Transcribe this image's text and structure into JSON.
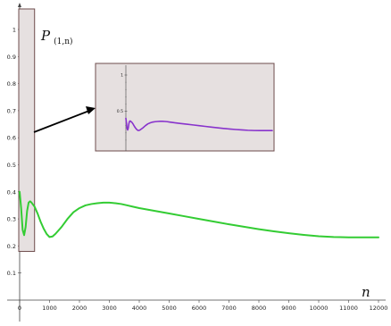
{
  "chart_data": {
    "type": "line",
    "xlabel": "n",
    "zoom_label_main": "P",
    "zoom_label_sub": "(1,n)",
    "xlim": [
      0,
      12000
    ],
    "ylim": [
      0,
      1
    ],
    "x_ticks": [
      0,
      1000,
      2000,
      3000,
      4000,
      5000,
      6000,
      7000,
      8000,
      9000,
      10000,
      11000,
      12000
    ],
    "x_tick_labels": [
      "0",
      "1000",
      "2000",
      "3000",
      "4000",
      "5000",
      "6000",
      "7000",
      "8000",
      "9000",
      "10000",
      "11000",
      "12000"
    ],
    "y_ticks": [
      0.1,
      0.2,
      0.3,
      0.4,
      0.5,
      0.6,
      0.7,
      0.8,
      0.9,
      1
    ],
    "y_tick_labels": [
      "0.1",
      "0.2",
      "0.3",
      "0.4",
      "0.5",
      "0.6",
      "0.7",
      "0.8",
      "0.9",
      "1"
    ],
    "grid": false,
    "series_color": "#33cc33",
    "x": [
      0,
      50,
      100,
      150,
      200,
      250,
      300,
      350,
      400,
      500,
      600,
      700,
      800,
      900,
      1000,
      1100,
      1200,
      1400,
      1600,
      1800,
      2000,
      2200,
      2400,
      2600,
      2800,
      3000,
      3200,
      3400,
      3600,
      3800,
      4000,
      4500,
      5000,
      5500,
      6000,
      6500,
      7000,
      7500,
      8000,
      8500,
      9000,
      9500,
      10000,
      10500,
      11000,
      11500,
      12000
    ],
    "y": [
      0.4,
      0.34,
      0.26,
      0.24,
      0.27,
      0.33,
      0.36,
      0.365,
      0.36,
      0.345,
      0.32,
      0.29,
      0.265,
      0.245,
      0.233,
      0.235,
      0.245,
      0.27,
      0.3,
      0.325,
      0.34,
      0.35,
      0.355,
      0.358,
      0.36,
      0.36,
      0.358,
      0.355,
      0.35,
      0.345,
      0.34,
      0.33,
      0.32,
      0.31,
      0.3,
      0.29,
      0.28,
      0.271,
      0.262,
      0.254,
      0.247,
      0.241,
      0.236,
      0.233,
      0.232,
      0.232,
      0.232
    ],
    "zoom_region": {
      "x": [
        0,
        350
      ],
      "y": [
        0.18,
        1.0
      ]
    },
    "inset": {
      "y_ticks": [
        0.5,
        1
      ],
      "y_tick_labels": [
        "0.5",
        "1"
      ],
      "series_color": "#8833cc"
    }
  }
}
